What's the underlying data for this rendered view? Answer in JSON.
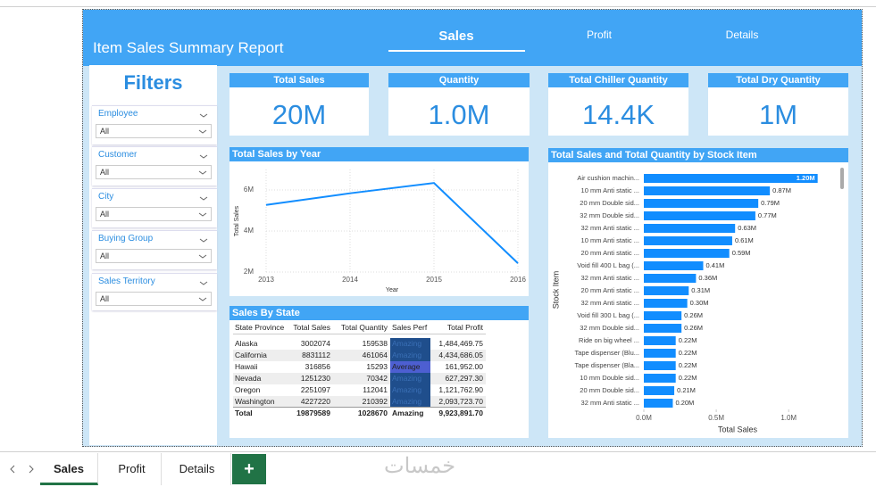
{
  "header": {
    "title": "Item Sales Summary Report",
    "tabs": [
      "Sales",
      "Profit",
      "Details"
    ]
  },
  "filters": {
    "title": "Filters",
    "items": [
      {
        "label": "Employee",
        "value": "All"
      },
      {
        "label": "Customer",
        "value": "All"
      },
      {
        "label": "City",
        "value": "All"
      },
      {
        "label": "Buying Group",
        "value": "All"
      },
      {
        "label": "Sales Territory",
        "value": "All"
      }
    ]
  },
  "kpis": [
    {
      "title": "Total Sales",
      "value": "20M"
    },
    {
      "title": "Quantity",
      "value": "1.0M"
    },
    {
      "title": "Total Chiller Quantity",
      "value": "14.4K"
    },
    {
      "title": "Total Dry Quantity",
      "value": "1M"
    }
  ],
  "chart_data": [
    {
      "type": "line",
      "title": "Total Sales by Year",
      "x": [
        2013,
        2014,
        2015,
        2016
      ],
      "values": [
        5270000,
        5840000,
        6340000,
        2430000
      ],
      "color": "#118dff",
      "xlim": [
        2013,
        2016
      ],
      "xticks": [
        2013,
        2014,
        2015,
        2016
      ],
      "ylim": [
        2000000,
        7000000
      ],
      "yticks": [
        {
          "value": 2000000,
          "label": "2M"
        },
        {
          "value": 4000000,
          "label": "4M"
        },
        {
          "value": 6000000,
          "label": "6M"
        }
      ],
      "xlabel": "Year",
      "ylabel": "Total Sales",
      "grid": true
    },
    {
      "type": "barh",
      "title": "Total Sales and Total Quantity by Stock Item",
      "categories": [
        "Air cushion machin...",
        "10 mm Anti static ...",
        "20 mm Double sid...",
        "32 mm Double sid...",
        "32 mm Anti static ...",
        "10 mm Anti static ...",
        "20 mm Anti static ...",
        "Void fill 400 L bag (...",
        "32 mm Anti static ...",
        "20 mm Anti static ...",
        "32 mm Anti static ...",
        "Void fill 300 L bag (...",
        "32 mm Double sid...",
        "Ride on big wheel ...",
        "Tape dispenser (Blu...",
        "Tape dispenser (Bla...",
        "10 mm Double sid...",
        "20 mm Double sid...",
        "32 mm Anti static ..."
      ],
      "values": [
        1200000,
        870000,
        790000,
        770000,
        630000,
        610000,
        590000,
        410000,
        360000,
        310000,
        300000,
        260000,
        260000,
        220000,
        220000,
        220000,
        220000,
        210000,
        200000
      ],
      "value_labels": [
        "1.20M",
        "0.87M",
        "0.79M",
        "0.77M",
        "0.63M",
        "0.61M",
        "0.59M",
        "0.41M",
        "0.36M",
        "0.31M",
        "0.30M",
        "0.26M",
        "0.26M",
        "0.22M",
        "0.22M",
        "0.22M",
        "0.22M",
        "0.21M",
        "0.20M"
      ],
      "color": "#118dff",
      "xlim": [
        0,
        1350000
      ],
      "xticks": [
        {
          "value": 0,
          "label": "0.0M"
        },
        {
          "value": 500000,
          "label": "0.5M"
        },
        {
          "value": 1000000,
          "label": "1.0M"
        }
      ],
      "xlabel": "Total Sales",
      "ylabel": "Stock Item"
    }
  ],
  "table": {
    "title": "Sales By State",
    "columns": [
      "State Province",
      "Total Sales",
      "Total Quantity",
      "Sales Perf",
      "Total Profit"
    ],
    "rows": [
      [
        "Alaska",
        "3002074",
        "159538",
        "Amazing",
        "1,484,469.75"
      ],
      [
        "California",
        "8831112",
        "461064",
        "Amazing",
        "4,434,686.05"
      ],
      [
        "Hawaii",
        "316856",
        "15293",
        "Average",
        "161,952.00"
      ],
      [
        "Nevada",
        "1251230",
        "70342",
        "Amazing",
        "627,297.30"
      ],
      [
        "Oregon",
        "2251097",
        "112041",
        "Amazing",
        "1,121,762.90"
      ],
      [
        "Washington",
        "4227220",
        "210392",
        "Amazing",
        "2,093,723.70"
      ]
    ],
    "total": [
      "Total",
      "19879589",
      "1028670",
      "Amazing",
      "9,923,891.70"
    ],
    "perf_colors": {
      "Amazing": "#1f4e8c",
      "Average": "#4d5fd1"
    }
  },
  "sheet_tabs": [
    "Sales",
    "Profit",
    "Details",
    "+"
  ],
  "watermark": "خمسات"
}
